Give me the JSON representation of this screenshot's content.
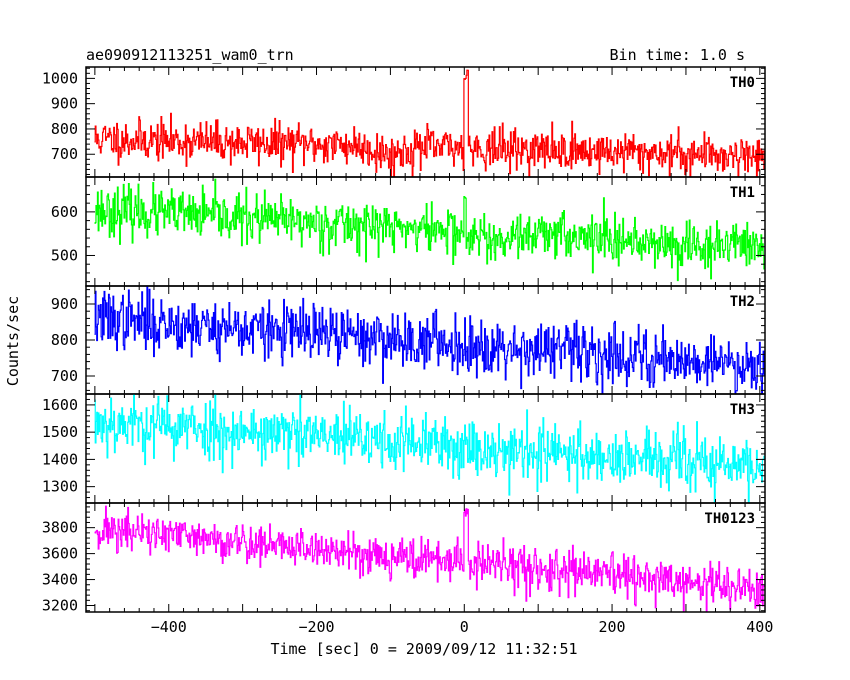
{
  "header": {
    "left_title": "ae090912113251_wam0_trn",
    "right_title": "Bin time: 1.0 s"
  },
  "chart_data": {
    "type": "line",
    "title": "ae090912113251_wam0_trn",
    "subtitle": "Bin time: 1.0 s",
    "xlabel": "Time [sec] 0 = 2009/09/12 11:32:51",
    "ylabel": "Counts/sec",
    "x_range": [
      -512,
      407
    ],
    "x_ticks": [
      -400,
      -200,
      0,
      200,
      400
    ],
    "x_tick_labels": [
      "−400",
      "−200",
      "0",
      "200",
      "400"
    ],
    "bin_time_s": 1.0,
    "grid": false,
    "panels": [
      {
        "name": "TH0",
        "color": "#ff0000",
        "ylim": [
          610,
          1045
        ],
        "y_ticks": [
          700,
          800,
          900,
          1000
        ],
        "mean_start": 760,
        "mean_end": 695,
        "dip": {
          "center": -100,
          "width": 40,
          "level": 680
        },
        "noise": 40,
        "spike": {
          "t": 0,
          "width": 6,
          "peak": 1040
        },
        "seed": 11
      },
      {
        "name": "TH1",
        "color": "#00ff00",
        "ylim": [
          430,
          680
        ],
        "y_ticks": [
          500,
          600
        ],
        "mean_start": 605,
        "mean_end": 515,
        "noise": 28,
        "spike": {
          "t": 0,
          "width": 3,
          "peak": 640
        },
        "seed": 23
      },
      {
        "name": "TH2",
        "color": "#0000ff",
        "ylim": [
          650,
          950
        ],
        "y_ticks": [
          700,
          800,
          900
        ],
        "mean_start": 860,
        "mean_end": 730,
        "noise": 40,
        "seed": 37
      },
      {
        "name": "TH3",
        "color": "#00ffff",
        "ylim": [
          1240,
          1640
        ],
        "y_ticks": [
          1300,
          1400,
          1500,
          1600
        ],
        "mean_start": 1540,
        "mean_end": 1370,
        "noise": 55,
        "seed": 53
      },
      {
        "name": "TH0123",
        "color": "#ff00ff",
        "ylim": [
          3150,
          3990
        ],
        "y_ticks": [
          3200,
          3400,
          3600,
          3800
        ],
        "mean_start": 3790,
        "mean_end": 3320,
        "noise": 80,
        "spike": {
          "t": 0,
          "width": 6,
          "peak": 3950
        },
        "seed": 71
      }
    ]
  }
}
